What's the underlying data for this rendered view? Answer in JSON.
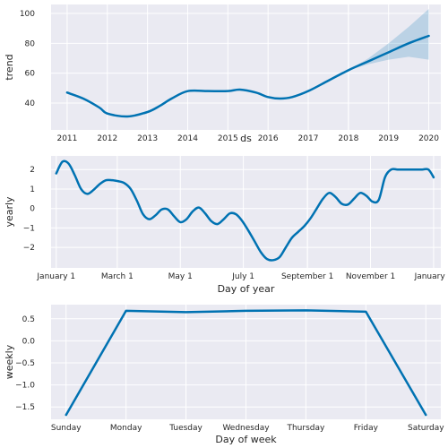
{
  "colors": {
    "series": "#0072b2",
    "band": "#0072b2",
    "panel_background": "#eaeaf2",
    "grid": "#ffffff",
    "text": "#262626"
  },
  "chart_data": [
    {
      "type": "line",
      "id": "trend",
      "xlabel": "ds",
      "ylabel": "trend",
      "grid": true,
      "x_kind": "year",
      "xlim": [
        2010.6,
        2020.3
      ],
      "ylim": [
        22,
        106
      ],
      "xticks": [
        2011,
        2012,
        2013,
        2014,
        2015,
        2016,
        2017,
        2018,
        2019,
        2020
      ],
      "xtick_labels": [
        "2011",
        "2012",
        "2013",
        "2014",
        "2015",
        "2016",
        "2017",
        "2018",
        "2019",
        "2020"
      ],
      "yticks": [
        40,
        60,
        80,
        100
      ],
      "ytick_labels": [
        "40",
        "60",
        "80",
        "100"
      ],
      "series": [
        {
          "x": [
            2011.0,
            2011.4,
            2011.8,
            2012.0,
            2012.5,
            2013.0,
            2013.3,
            2013.6,
            2014.0,
            2014.5,
            2015.0,
            2015.3,
            2015.7,
            2016.0,
            2016.3,
            2016.6,
            2017.0,
            2017.5,
            2018.0,
            2018.5,
            2019.0,
            2019.5,
            2020.0
          ],
          "y": [
            47,
            43,
            37,
            33,
            31,
            34,
            38,
            43,
            48,
            48,
            48,
            49,
            47,
            44,
            43,
            44,
            48,
            55,
            62,
            68,
            74,
            80,
            85
          ]
        }
      ],
      "uncertainty_band": {
        "x": [
          2018.0,
          2018.5,
          2019.0,
          2019.5,
          2020.0
        ],
        "lower": [
          62,
          66,
          69,
          71,
          69
        ],
        "upper": [
          62,
          70,
          80,
          91,
          103
        ]
      },
      "changepoint_x": 2018.0
    },
    {
      "type": "line",
      "id": "yearly",
      "xlabel": "Day of year",
      "ylabel": "yearly",
      "grid": true,
      "x_kind": "day_of_year",
      "xlim": [
        -5,
        372
      ],
      "ylim": [
        -3.05,
        2.7
      ],
      "xticks": [
        0,
        59,
        120,
        181,
        243,
        304,
        365
      ],
      "xtick_labels": [
        "January 1",
        "March 1",
        "May 1",
        "July 1",
        "September 1",
        "November 1",
        "January 1"
      ],
      "yticks": [
        -2,
        -1,
        0,
        1,
        2
      ],
      "ytick_labels": [
        "−2",
        "−1",
        "0",
        "1",
        "2"
      ],
      "series": [
        {
          "x": [
            0,
            6,
            12,
            18,
            24,
            30,
            36,
            42,
            48,
            54,
            60,
            66,
            72,
            78,
            84,
            90,
            96,
            102,
            108,
            114,
            120,
            126,
            132,
            138,
            144,
            150,
            156,
            162,
            168,
            174,
            180,
            186,
            192,
            198,
            204,
            210,
            216,
            222,
            228,
            234,
            240,
            246,
            252,
            258,
            264,
            270,
            276,
            282,
            288,
            294,
            300,
            306,
            312,
            318,
            324,
            330,
            336,
            342,
            348,
            354,
            360,
            365
          ],
          "y": [
            1.8,
            2.4,
            2.3,
            1.7,
            1.0,
            0.75,
            0.95,
            1.25,
            1.45,
            1.45,
            1.4,
            1.3,
            1.0,
            0.4,
            -0.3,
            -0.55,
            -0.35,
            -0.05,
            -0.05,
            -0.4,
            -0.7,
            -0.55,
            -0.15,
            0.05,
            -0.25,
            -0.65,
            -0.8,
            -0.55,
            -0.25,
            -0.3,
            -0.65,
            -1.15,
            -1.7,
            -2.25,
            -2.6,
            -2.65,
            -2.5,
            -2.0,
            -1.5,
            -1.2,
            -0.9,
            -0.5,
            0.0,
            0.5,
            0.8,
            0.6,
            0.25,
            0.2,
            0.5,
            0.8,
            0.65,
            0.35,
            0.45,
            1.6,
            2.0,
            2.0,
            2.0,
            2.0,
            2.0,
            2.0,
            2.0,
            1.6
          ]
        }
      ],
      "changepoint_x": 243
    },
    {
      "type": "line",
      "id": "weekly",
      "xlabel": "Day of week",
      "ylabel": "weekly",
      "grid": true,
      "x_kind": "day_of_week",
      "xlim": [
        -0.25,
        6.25
      ],
      "ylim": [
        -1.78,
        0.82
      ],
      "xticks": [
        0,
        1,
        2,
        3,
        4,
        5,
        6
      ],
      "xtick_labels": [
        "Sunday",
        "Monday",
        "Tuesday",
        "Wednesday",
        "Thursday",
        "Friday",
        "Saturday"
      ],
      "yticks": [
        -1.5,
        -1.0,
        -0.5,
        0.0,
        0.5
      ],
      "ytick_labels": [
        "−1.5",
        "−1.0",
        "−0.5",
        "0.0",
        "0.5"
      ],
      "series": [
        {
          "x": [
            0,
            1,
            2,
            3,
            4,
            5,
            6
          ],
          "y": [
            -1.68,
            0.68,
            0.65,
            0.68,
            0.69,
            0.66,
            -1.68
          ]
        }
      ],
      "changepoint_x": 2
    }
  ]
}
